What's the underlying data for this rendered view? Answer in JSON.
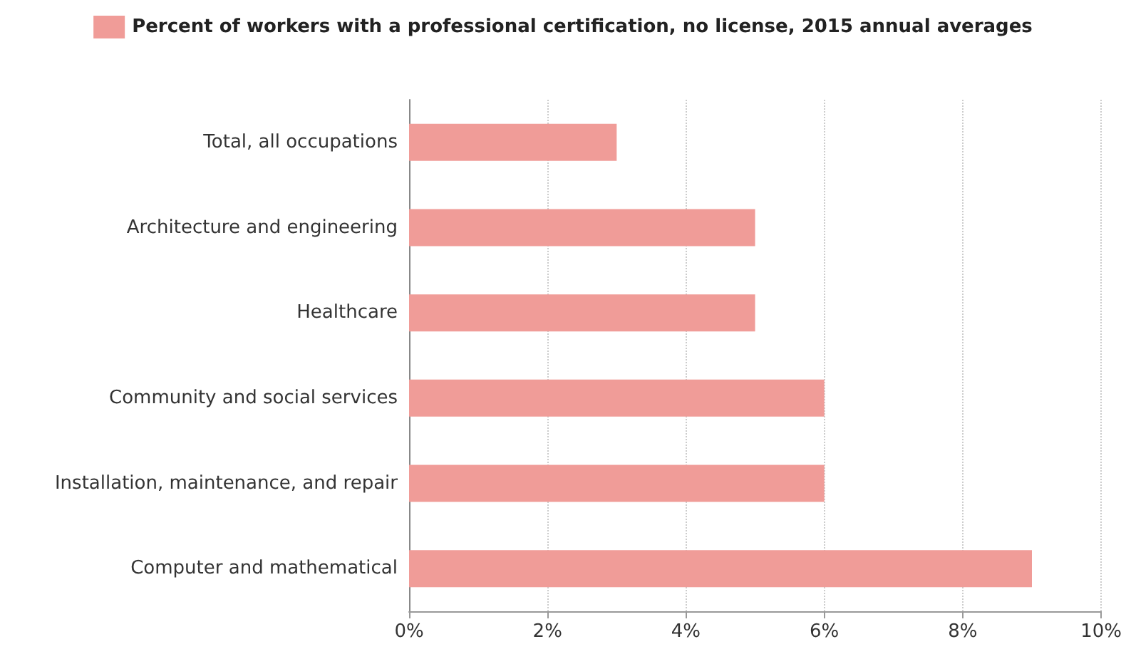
{
  "chart_data": {
    "type": "bar",
    "orientation": "horizontal",
    "categories": [
      "Total, all occupations",
      "Architecture and engineering",
      "Healthcare",
      "Community and social services",
      "Installation, maintenance, and repair",
      "Computer and mathematical"
    ],
    "series": [
      {
        "name": "Percent of workers with a professional certification, no license, 2015 annual averages",
        "color": "#f09c98",
        "values": [
          3,
          5,
          5,
          6,
          6,
          9
        ]
      }
    ],
    "xlim": [
      0,
      10
    ],
    "xticks": [
      {
        "value": 0,
        "label": "0%"
      },
      {
        "value": 2,
        "label": "2%"
      },
      {
        "value": 4,
        "label": "4%"
      },
      {
        "value": 6,
        "label": "6%"
      },
      {
        "value": 8,
        "label": "8%"
      },
      {
        "value": 10,
        "label": "10%"
      }
    ],
    "grid": "x",
    "legend": "top"
  }
}
